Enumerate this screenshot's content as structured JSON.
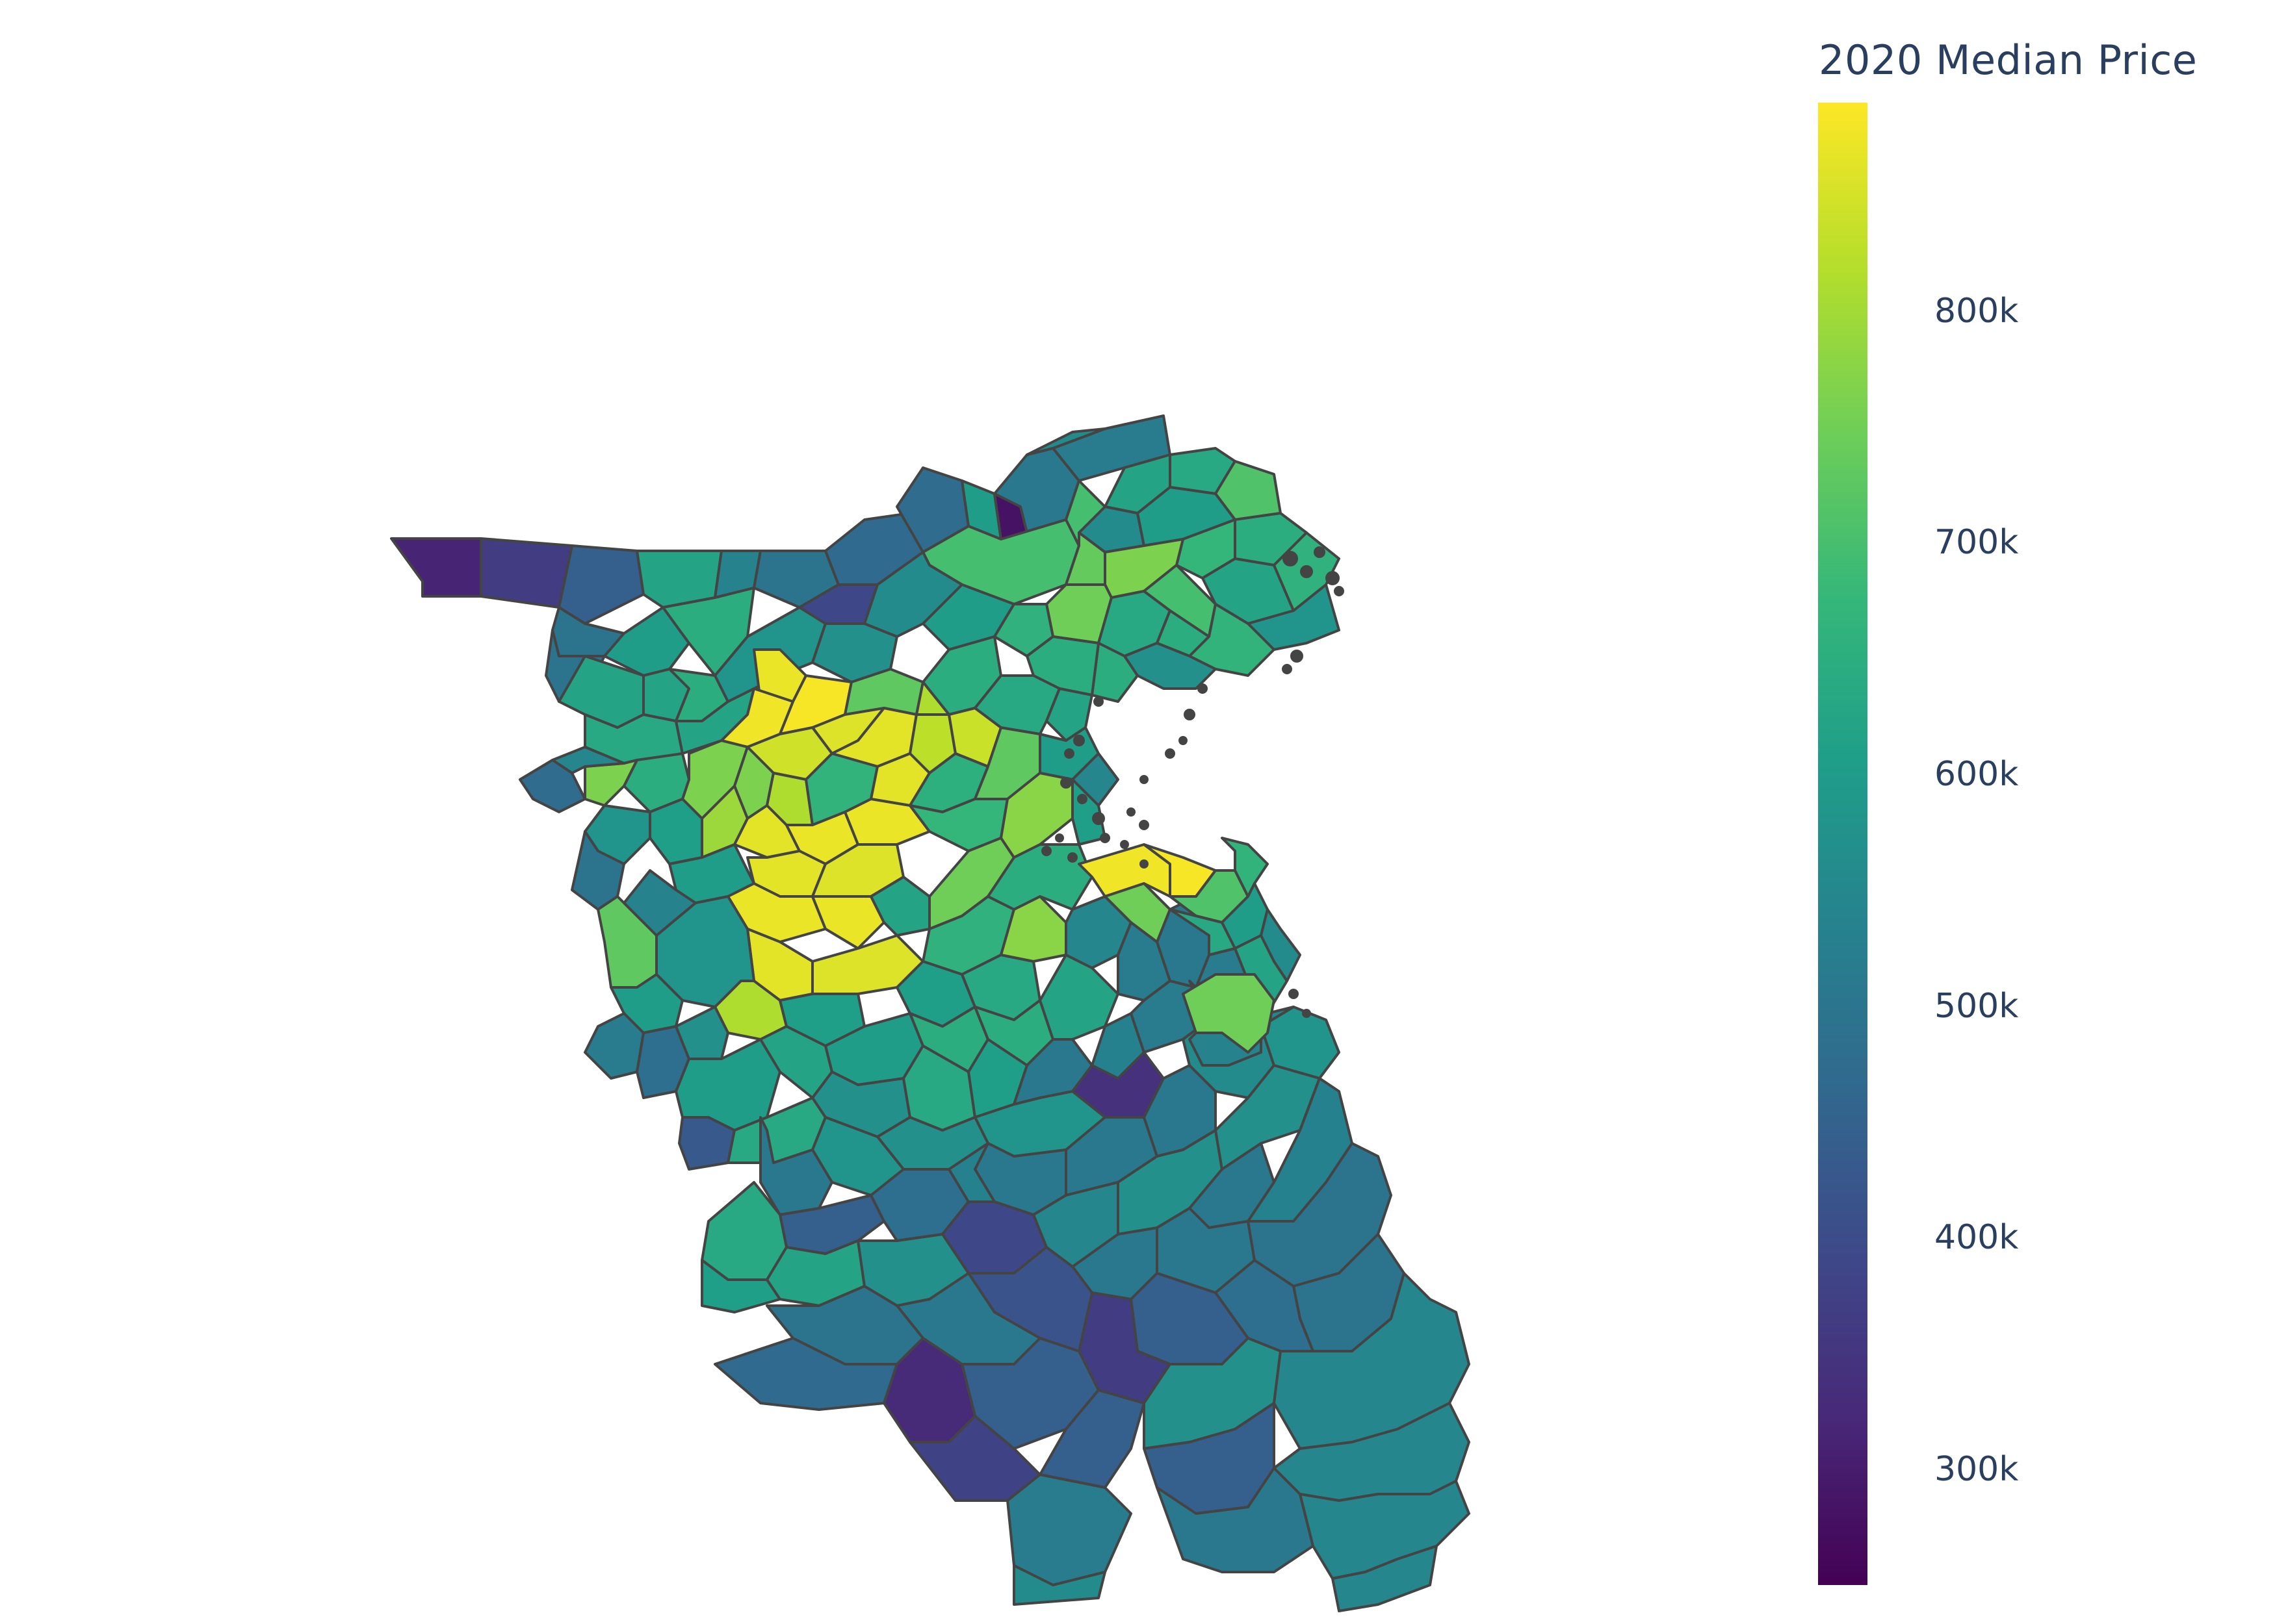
{
  "colorbar": {
    "title": "2020 Median Price",
    "min": 250000,
    "max": 890000,
    "ticks": [
      {
        "value": 300000,
        "label": "300k"
      },
      {
        "value": 400000,
        "label": "400k"
      },
      {
        "value": 500000,
        "label": "500k"
      },
      {
        "value": 600000,
        "label": "600k"
      },
      {
        "value": 700000,
        "label": "700k"
      },
      {
        "value": 800000,
        "label": "800k"
      }
    ],
    "colorscale": "Viridis",
    "stops": [
      "#440154",
      "#482878",
      "#3e4989",
      "#31688e",
      "#26828e",
      "#1f9e89",
      "#35b779",
      "#6ece58",
      "#b5de2b",
      "#fde725"
    ]
  },
  "map": {
    "type": "choropleth",
    "region": "Greater Boston area towns",
    "border_color": "#444444",
    "dominant_colors": {
      "lowest": "#3b0f5c",
      "low": "#3e4989",
      "mid_low": "#31688e",
      "mid": "#21918c",
      "mid_high": "#35b779",
      "high": "#8fd744",
      "highest": "#fde725"
    }
  }
}
